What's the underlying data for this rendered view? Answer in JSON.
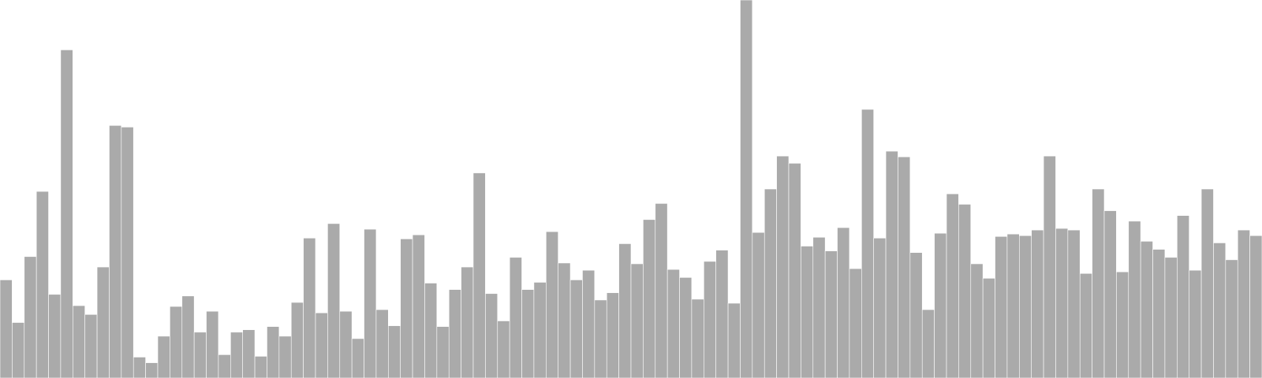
{
  "chart_data": {
    "type": "bar",
    "bar_color": "#aaaaaa",
    "background": "#ffffff",
    "grid": false,
    "legend": "none",
    "axes_visible": false,
    "ylim": [
      0,
      470
    ],
    "values": [
      122,
      69,
      151,
      232,
      104,
      408,
      90,
      79,
      138,
      314,
      312,
      26,
      19,
      52,
      89,
      102,
      57,
      83,
      29,
      57,
      60,
      27,
      64,
      52,
      94,
      174,
      81,
      192,
      83,
      49,
      185,
      85,
      65,
      173,
      178,
      118,
      64,
      110,
      138,
      255,
      105,
      71,
      150,
      110,
      119,
      182,
      143,
      122,
      134,
      97,
      106,
      167,
      142,
      197,
      217,
      135,
      125,
      98,
      145,
      159,
      93,
      470,
      181,
      235,
      276,
      267,
      164,
      175,
      158,
      187,
      136,
      334,
      174,
      282,
      275,
      156,
      85,
      180,
      229,
      216,
      142,
      124,
      176,
      179,
      177,
      184,
      276,
      186,
      184,
      130,
      235,
      208,
      132,
      195,
      170,
      160,
      150,
      202,
      134,
      235,
      168,
      147,
      184,
      177
    ]
  }
}
